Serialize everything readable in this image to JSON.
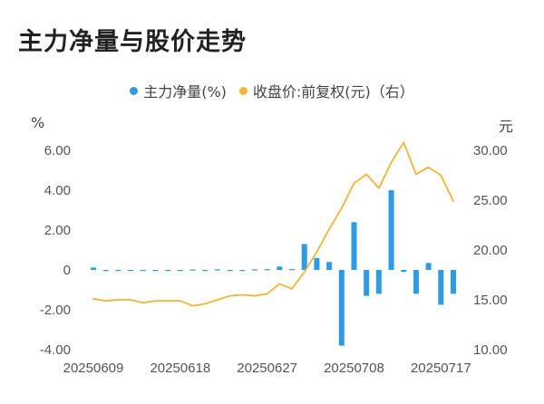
{
  "chart_data": {
    "type": "bar+line",
    "title": "主力净量与股价走势",
    "legend": [
      {
        "name": "主力净量(%)",
        "color": "#2e9be8"
      },
      {
        "name": "收盘价:前复权(元)（右）",
        "color": "#f5b335"
      }
    ],
    "left_unit": "%",
    "right_unit": "元",
    "left_ticks": [
      "6.00",
      "4.00",
      "2.00",
      "0",
      "-2.00",
      "-4.00"
    ],
    "left_ylim": [
      -4,
      6
    ],
    "right_ticks": [
      "30.00",
      "25.00",
      "20.00",
      "15.00",
      "10.00"
    ],
    "right_ylim": [
      10,
      30
    ],
    "x_tick_labels": [
      "20250609",
      "20250618",
      "20250627",
      "20250708",
      "20250717"
    ],
    "x_tick_indices": [
      0,
      7,
      14,
      21,
      28
    ],
    "series": [
      {
        "name": "主力净量(%)",
        "type": "bar",
        "color": "#2e9be8",
        "values": [
          0.12,
          -0.04,
          -0.05,
          -0.02,
          -0.01,
          -0.05,
          -0.02,
          -0.03,
          0.02,
          -0.03,
          0.03,
          -0.02,
          -0.03,
          0.03,
          0.04,
          0.17,
          0.04,
          1.3,
          0.6,
          0.4,
          -3.8,
          2.4,
          -1.3,
          -1.2,
          4.0,
          -0.1,
          -1.2,
          0.35,
          -1.75,
          -1.2
        ]
      },
      {
        "name": "收盘价:前复权(元)（右）",
        "type": "line",
        "color": "#f5b335",
        "values": [
          15.1,
          14.9,
          15.0,
          15.0,
          14.7,
          14.9,
          14.9,
          14.9,
          14.4,
          14.6,
          15.0,
          15.4,
          15.5,
          15.4,
          15.6,
          16.6,
          16.1,
          17.8,
          19.8,
          22.1,
          24.2,
          26.7,
          27.6,
          26.2,
          28.8,
          30.8,
          27.6,
          28.3,
          27.5,
          24.9
        ]
      }
    ]
  }
}
